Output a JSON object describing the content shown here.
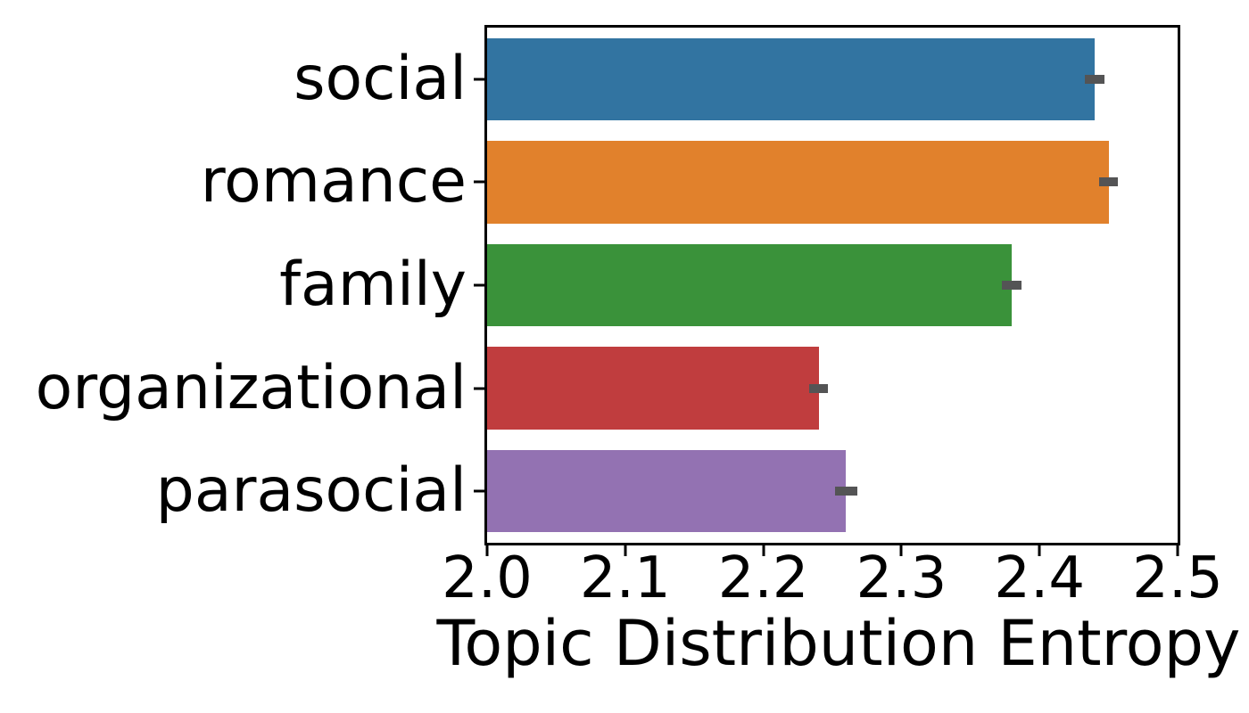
{
  "chart_data": {
    "type": "bar",
    "orientation": "horizontal",
    "title": "",
    "xlabel": "Topic Distribution Entropy",
    "ylabel": "",
    "categories": [
      "social",
      "romance",
      "family",
      "organizational",
      "parasocial"
    ],
    "values": [
      2.44,
      2.45,
      2.38,
      2.24,
      2.26
    ],
    "errors": [
      0.007,
      0.007,
      0.007,
      0.007,
      0.008
    ],
    "bar_colors": [
      "#3274a1",
      "#e1812c",
      "#3a923a",
      "#c03d3e",
      "#9372b2"
    ],
    "error_bar_color": "#545455",
    "x_ticks": [
      2.0,
      2.1,
      2.2,
      2.3,
      2.4,
      2.5
    ],
    "x_tick_labels": [
      "2.0",
      "2.1",
      "2.2",
      "2.3",
      "2.4",
      "2.5"
    ],
    "xlim": [
      2.0,
      2.5
    ],
    "grid": false,
    "legend": null,
    "spine_color": "#000000",
    "text_color": "#000000",
    "background_color": "#ffffff"
  }
}
